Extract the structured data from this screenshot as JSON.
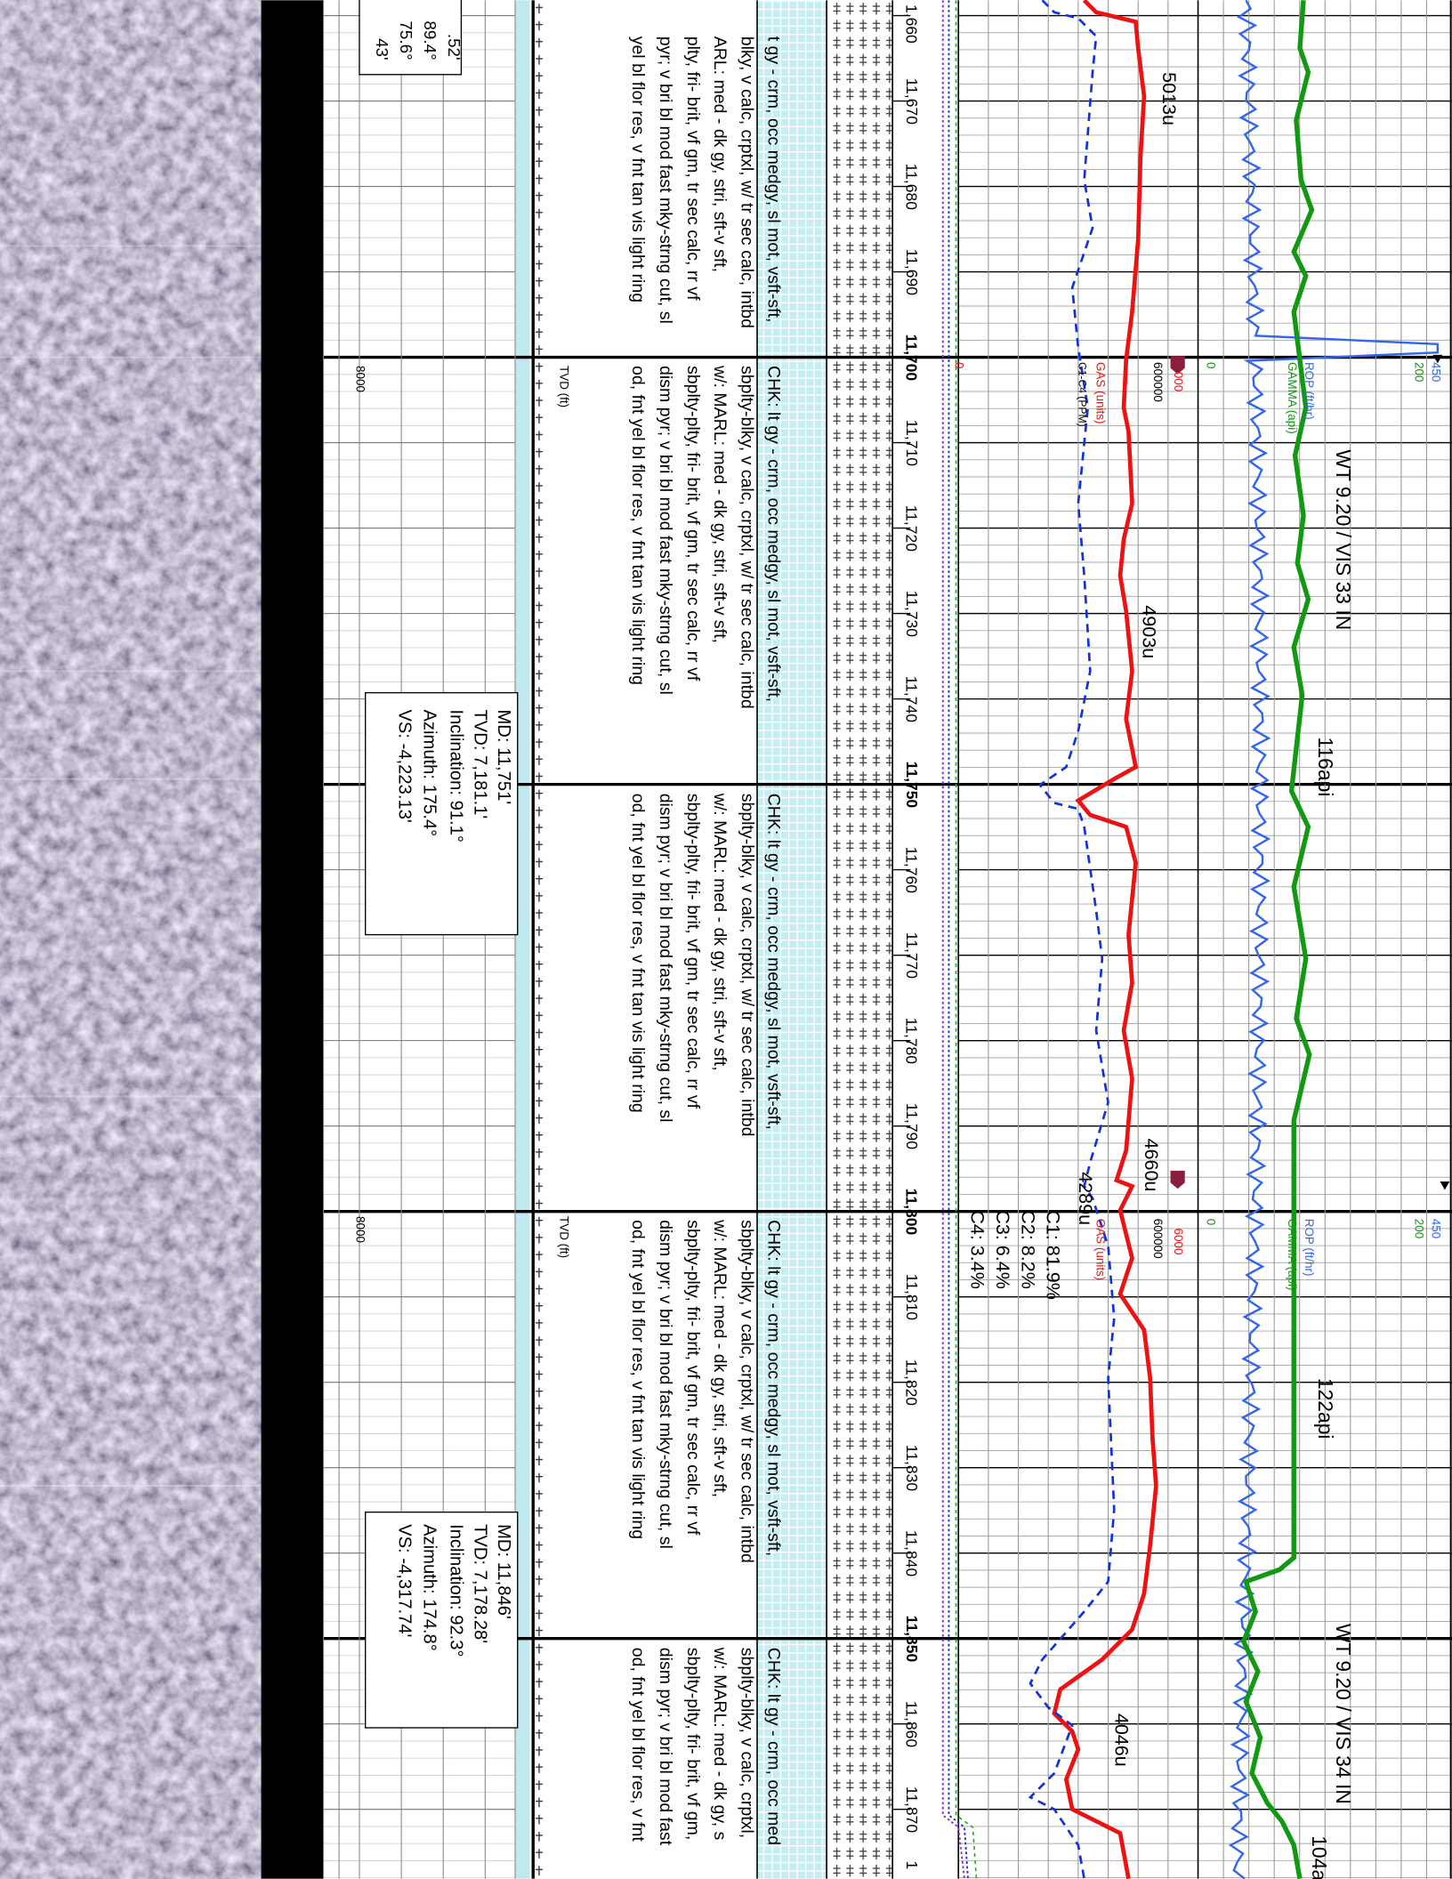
{
  "depth_labels": [
    "1,660",
    "11,670",
    "11,680",
    "11,690",
    "11,700",
    "11,710",
    "11,720",
    "11,730",
    "11,740",
    "11,750",
    "11,760",
    "11,770",
    "11,780",
    "11,790",
    "11,800",
    "11,810",
    "11,820",
    "11,830",
    "11,840",
    "11,850",
    "11,860",
    "11,870",
    "1"
  ],
  "headers": [
    {
      "rop_max": "450",
      "gamma_max": "200",
      "rop_label": "ROP (ft/hr)",
      "gamma_label": "GAMMA (api)",
      "rop_min": "0",
      "gas_max": "000",
      "c_max": "600000",
      "gas_label": "GAS (units)",
      "c_label": "C1-C4 (PPM)",
      "gas_min": "0"
    },
    {
      "rop_max": "450",
      "gamma_max": "200",
      "rop_label": "ROP (ft/hr)",
      "gamma_label": "GAMMA (api)",
      "rop_min": "0",
      "gas_max": "6000",
      "c_max": "600000",
      "gas_label": "GAS (units)"
    }
  ],
  "mud_notes": [
    "WT 9.20 / VIS 33 IN",
    "WT 9.20 / VIS 34 IN"
  ],
  "gamma_labels": [
    "116api",
    "122api",
    "104a"
  ],
  "gas_labels": [
    "5013u",
    "4903u",
    "4660u",
    "4289u",
    "4046u"
  ],
  "gas_composition": [
    "C1:  81.9%",
    "C2:  8.2%",
    "C3:  6.4%",
    "C4:  3.4%"
  ],
  "tvd": [
    {
      "title": "TVD (ft)",
      "scale": "8000"
    },
    {
      "title": "TVD (ft)",
      "scale": "8000"
    }
  ],
  "descriptions": [
    [
      "t gy - crm, occ medgy, sl mot, vsft-sft,",
      "blky, v calc, crptxl, w/ tr sec calc, intbd",
      "ARL: med - dk gy, stri, sft-v sft,",
      "plty, fri- brit, vf gm, tr sec calc, rr vf",
      "pyr; v bri bl mod fast mky-strng cut, sl",
      "yel bl flor res, v fnt tan vis light ring"
    ],
    [
      "CHK: lt gy - crm, occ medgy, sl mot, vsft-sft,",
      "sbplty-blky, v calc, crptxl, w/ tr sec calc, intbd",
      "w/: MARL: med - dk gy, stri, sft-v sft,",
      "sbplty-plty, fri- brit, vf gm, tr sec calc, rr vf",
      "dism pyr; v bri bl mod fast mky-strng cut, sl",
      "od, fnt yel bl flor res, v fnt tan vis light ring"
    ],
    [
      "CHK: lt gy - crm, occ medgy, sl mot, vsft-sft,",
      "sbplty-blky, v calc, crptxl, w/ tr sec calc, intbd",
      "w/: MARL: med - dk gy, stri, sft-v sft,",
      "sbplty-plty, fri- brit, vf gm, tr sec calc, rr vf",
      "dism pyr; v bri bl mod fast mky-strng cut, sl",
      "od, fnt yel bl flor res, v fnt tan vis light ring"
    ],
    [
      "CHK: lt gy - crm, occ medgy, sl mot, vsft-sft,",
      "sbplty-blky, v calc, crptxl, w/ tr sec calc, intbd",
      "w/: MARL: med - dk gy, stri, sft-v sft,",
      "sbplty-plty, fri- brit, vf gm, tr sec calc, rr vf",
      "dism pyr; v bri bl mod fast mky-strng cut, sl",
      "od, fnt yel bl flor res, v fnt tan vis light ring"
    ],
    [
      "CHK: lt gy - crm, occ med",
      "sbplty-blky, v calc, crptxl,",
      "w/: MARL: med - dk gy, s",
      "sbplty-plty, fri- brit, vf gm,",
      "dism pyr; v bri bl mod fast",
      "od, fnt yel bl flor res, v fnt"
    ]
  ],
  "surveys": [
    [
      ".52'",
      "89.4°",
      "75.6°",
      "43'"
    ],
    [
      "MD: 11,751'",
      "TVD: 7,181.1'",
      "Inclination: 91.1°",
      "Azimuth: 175.4°",
      "VS: -4,223.13'"
    ],
    [
      "MD: 11,846'",
      "TVD: 7,178.28'",
      "Inclination: 92.3°",
      "Azimuth: 174.8°",
      "VS: -4,317.74'"
    ]
  ]
}
